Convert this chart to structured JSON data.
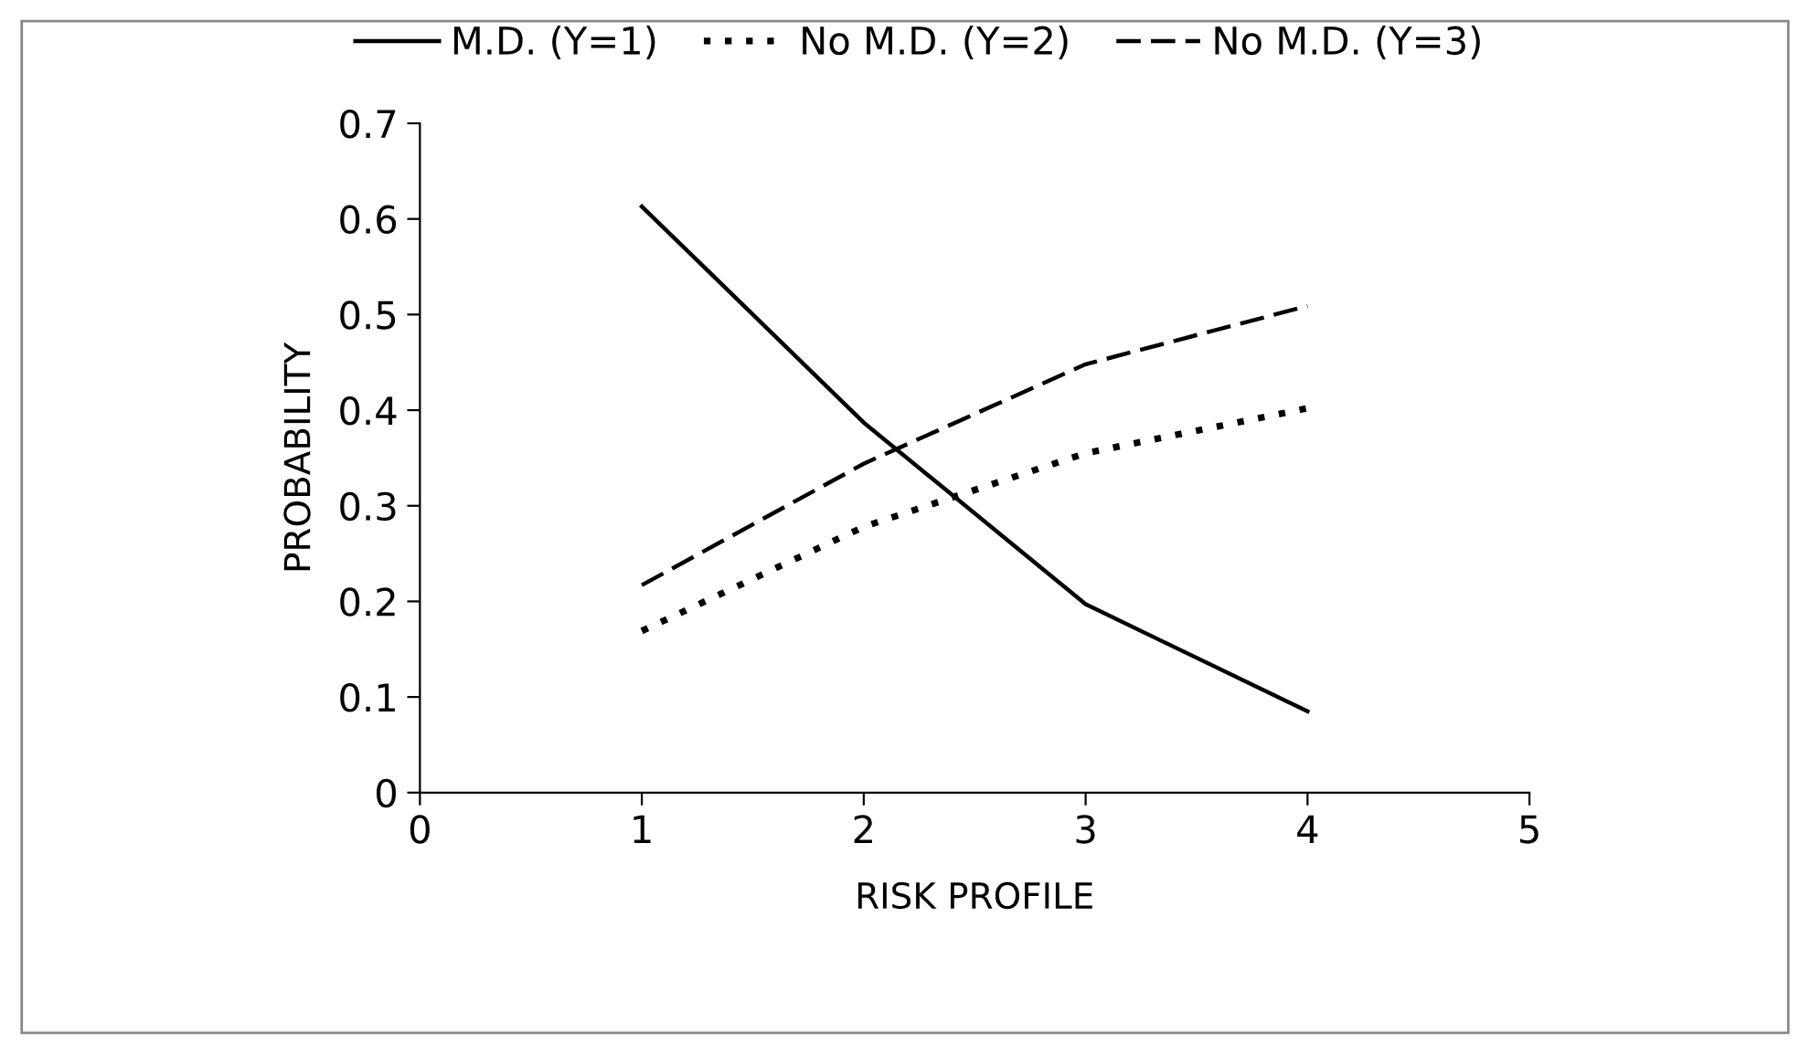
{
  "chart_data": {
    "type": "line",
    "xlabel": "RISK PROFILE",
    "ylabel": "PROBABILITY",
    "x": [
      1,
      2,
      3,
      4
    ],
    "series": [
      {
        "name": "M.D. (Y=1)",
        "color": "#000000",
        "line_style": "solid",
        "values": [
          0.613,
          0.387,
          0.197,
          0.085
        ]
      },
      {
        "name": "No M.D. (Y=2)",
        "color": "#000000",
        "line_style": "dotted",
        "values": [
          0.169,
          0.278,
          0.355,
          0.402
        ]
      },
      {
        "name": "No M.D. (Y=3)",
        "color": "#000000",
        "line_style": "dashed",
        "values": [
          0.217,
          0.344,
          0.448,
          0.509
        ]
      }
    ],
    "xlim": [
      0,
      5
    ],
    "xticks": [
      0,
      1,
      2,
      3,
      4,
      5
    ],
    "ylim": [
      0,
      0.7
    ],
    "yticks": [
      0,
      0.1,
      0.2,
      0.3,
      0.4,
      0.5,
      0.6,
      0.7
    ],
    "grid": false,
    "legend": "top",
    "marker": "none"
  }
}
